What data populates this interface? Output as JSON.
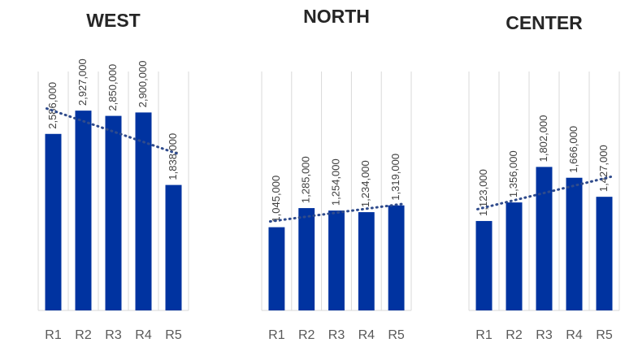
{
  "chart_data": [
    {
      "type": "bar",
      "title": "WEST",
      "categories": [
        "R1",
        "R2",
        "R3",
        "R4",
        "R5"
      ],
      "values": [
        2586000,
        2927000,
        2850000,
        2900000,
        1838000
      ],
      "value_labels": [
        "2,586,000",
        "2,927,000",
        "2,850,000",
        "2,900,000",
        "1,838,000"
      ],
      "color": "#0033a0",
      "ylim": [
        0,
        3500000
      ],
      "trendline": "linear",
      "grid": true
    },
    {
      "type": "bar",
      "title": "NORTH",
      "categories": [
        "R1",
        "R2",
        "R3",
        "R4",
        "R5"
      ],
      "values": [
        1045000,
        1285000,
        1254000,
        1234000,
        1319000
      ],
      "value_labels": [
        "1,045,000",
        "1,285,000",
        "1,254,000",
        "1,234,000",
        "1,319,000"
      ],
      "color": "#0033a0",
      "ylim": [
        0,
        3000000
      ],
      "trendline": "linear",
      "grid": true
    },
    {
      "type": "bar",
      "title": "CENTER",
      "categories": [
        "R1",
        "R2",
        "R3",
        "R4",
        "R5"
      ],
      "values": [
        1123000,
        1356000,
        1802000,
        1666000,
        1427000
      ],
      "value_labels": [
        "1,123,000",
        "1,356,000",
        "1,802,000",
        "1,666,000",
        "1,427,000"
      ],
      "color": "#0033a0",
      "ylim": [
        0,
        3000000
      ],
      "trendline": "linear",
      "grid": true
    }
  ]
}
